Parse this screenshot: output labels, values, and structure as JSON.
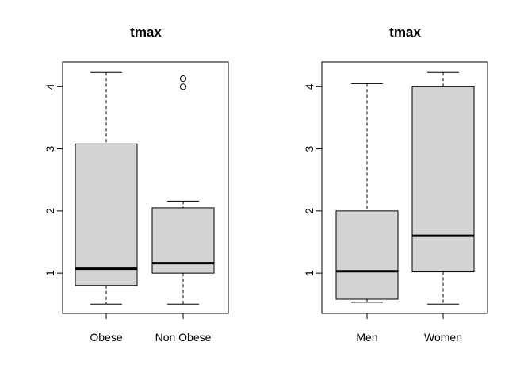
{
  "chart_data": [
    {
      "type": "box",
      "title": "tmax",
      "xlabel": "",
      "ylabel": "",
      "ylim": [
        0.35,
        4.4
      ],
      "yticks": [
        1,
        2,
        3,
        4
      ],
      "categories": [
        "Obese",
        "Non Obese"
      ],
      "boxes": [
        {
          "min": 0.5,
          "q1": 0.8,
          "median": 1.07,
          "q3": 3.08,
          "max": 4.23,
          "outliers": []
        },
        {
          "min": 0.5,
          "q1": 1.0,
          "median": 1.16,
          "q3": 2.05,
          "max": 2.16,
          "outliers": [
            4.0,
            4.13
          ]
        }
      ],
      "box_color": "#d3d3d3",
      "grid": false
    },
    {
      "type": "box",
      "title": "tmax",
      "xlabel": "",
      "ylabel": "",
      "ylim": [
        0.35,
        4.4
      ],
      "yticks": [
        1,
        2,
        3,
        4
      ],
      "categories": [
        "Men",
        "Women"
      ],
      "boxes": [
        {
          "min": 0.53,
          "q1": 0.58,
          "median": 1.03,
          "q3": 2.0,
          "max": 4.05,
          "outliers": []
        },
        {
          "min": 0.5,
          "q1": 1.02,
          "median": 1.6,
          "q3": 4.0,
          "max": 4.23,
          "outliers": []
        }
      ],
      "box_color": "#d3d3d3",
      "grid": false
    }
  ]
}
